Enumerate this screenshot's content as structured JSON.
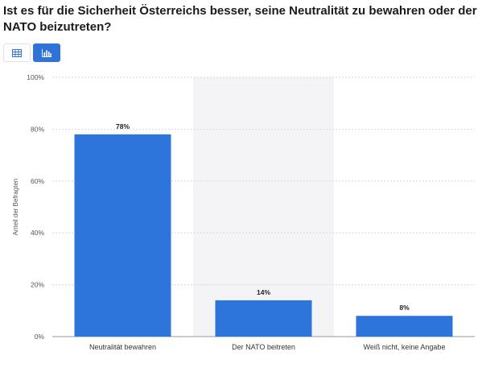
{
  "title": "Ist es für die Sicherheit Österreichs besser, seine Neutralität zu bewahren oder der NATO beizutreten?",
  "view_toggle": {
    "table_icon": "table-icon",
    "chart_icon": "bar-chart-icon",
    "active": "chart"
  },
  "colors": {
    "bar": "#2d75db",
    "highlight_band": "#f4f4f6",
    "accent": "#2f73d9"
  },
  "chart_data": {
    "type": "bar",
    "categories": [
      "Neutralität bewahren",
      "Der NATO beitreten",
      "Weiß nicht, keine Angabe"
    ],
    "values": [
      78,
      14,
      8
    ],
    "value_labels": [
      "78%",
      "14%",
      "8%"
    ],
    "ylabel": "Anteil der Befragten",
    "ylim": [
      0,
      100
    ],
    "yticks": [
      0,
      20,
      40,
      60,
      80,
      100
    ],
    "ytick_labels": [
      "0%",
      "20%",
      "40%",
      "60%",
      "80%",
      "100%"
    ],
    "grid": true,
    "highlighted_category": "Der NATO beitreten"
  }
}
